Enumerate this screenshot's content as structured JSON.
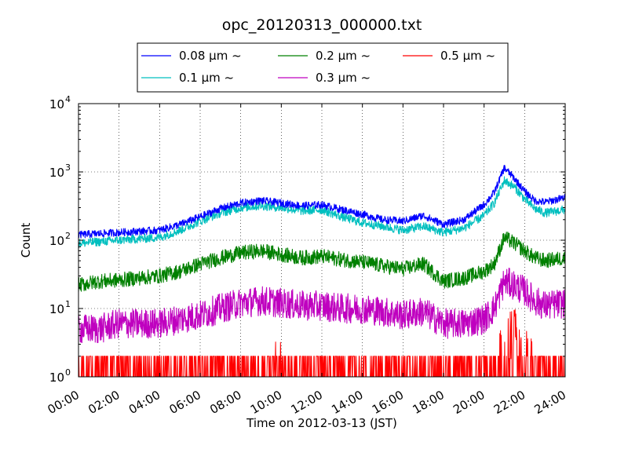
{
  "chart_data": {
    "type": "line",
    "title": "opc_20120313_000000.txt",
    "xlabel": "Time on 2012-03-13 (JST)",
    "ylabel": "Count",
    "y_scale": "log",
    "ylim": [
      1,
      10000
    ],
    "y_ticks": [
      {
        "value": 1,
        "base": "10",
        "exp": "0"
      },
      {
        "value": 10,
        "base": "10",
        "exp": "1"
      },
      {
        "value": 100,
        "base": "10",
        "exp": "2"
      },
      {
        "value": 1000,
        "base": "10",
        "exp": "3"
      },
      {
        "value": 10000,
        "base": "10",
        "exp": "4"
      }
    ],
    "xlim": [
      "00:00",
      "24:00"
    ],
    "x_ticks": [
      "00:00",
      "02:00",
      "04:00",
      "06:00",
      "08:00",
      "10:00",
      "12:00",
      "14:00",
      "16:00",
      "18:00",
      "20:00",
      "22:00",
      "24:00"
    ],
    "grid": true,
    "legend_position": "top-center",
    "series": [
      {
        "name": "0.08 μm ~",
        "color": "#0000ff",
        "x": [
          "00:00",
          "01:00",
          "02:00",
          "03:00",
          "04:00",
          "05:00",
          "06:00",
          "07:00",
          "08:00",
          "09:00",
          "10:00",
          "11:00",
          "12:00",
          "13:00",
          "14:00",
          "15:00",
          "16:00",
          "17:00",
          "18:00",
          "19:00",
          "20:00",
          "20:30",
          "21:00",
          "21:30",
          "22:00",
          "22:30",
          "23:00",
          "24:00"
        ],
        "values": [
          120,
          125,
          130,
          135,
          140,
          170,
          220,
          290,
          350,
          380,
          350,
          320,
          330,
          280,
          240,
          200,
          190,
          230,
          170,
          200,
          330,
          500,
          1150,
          800,
          520,
          380,
          360,
          420
        ]
      },
      {
        "name": "0.1 μm ~",
        "color": "#00bfbf",
        "x": [
          "00:00",
          "01:00",
          "02:00",
          "03:00",
          "04:00",
          "05:00",
          "06:00",
          "07:00",
          "08:00",
          "09:00",
          "10:00",
          "11:00",
          "12:00",
          "13:00",
          "14:00",
          "15:00",
          "16:00",
          "17:00",
          "18:00",
          "19:00",
          "20:00",
          "20:30",
          "21:00",
          "21:30",
          "22:00",
          "22:30",
          "23:00",
          "24:00"
        ],
        "values": [
          90,
          95,
          100,
          105,
          110,
          140,
          190,
          250,
          300,
          320,
          300,
          270,
          280,
          220,
          180,
          160,
          140,
          160,
          130,
          150,
          230,
          350,
          750,
          600,
          400,
          290,
          250,
          280
        ]
      },
      {
        "name": "0.2 μm ~",
        "color": "#008000",
        "x": [
          "00:00",
          "01:00",
          "02:00",
          "03:00",
          "04:00",
          "05:00",
          "06:00",
          "07:00",
          "08:00",
          "09:00",
          "10:00",
          "11:00",
          "12:00",
          "13:00",
          "14:00",
          "15:00",
          "16:00",
          "17:00",
          "18:00",
          "19:00",
          "20:00",
          "20:30",
          "21:00",
          "21:30",
          "22:00",
          "22:30",
          "23:00",
          "24:00"
        ],
        "values": [
          22,
          25,
          26,
          28,
          30,
          35,
          45,
          55,
          65,
          70,
          62,
          55,
          58,
          52,
          48,
          42,
          38,
          45,
          25,
          28,
          35,
          45,
          110,
          90,
          70,
          55,
          50,
          55
        ]
      },
      {
        "name": "0.3 μm ~",
        "color": "#bf00bf",
        "x": [
          "00:00",
          "01:00",
          "02:00",
          "03:00",
          "04:00",
          "05:00",
          "06:00",
          "07:00",
          "08:00",
          "09:00",
          "10:00",
          "11:00",
          "12:00",
          "13:00",
          "14:00",
          "15:00",
          "16:00",
          "17:00",
          "18:00",
          "19:00",
          "20:00",
          "20:30",
          "21:00",
          "21:30",
          "22:00",
          "22:30",
          "23:00",
          "24:00"
        ],
        "values": [
          5,
          5,
          6,
          6,
          6,
          7,
          8,
          10,
          12,
          13,
          12,
          11,
          11,
          10,
          10,
          9,
          8,
          9,
          6,
          6,
          7,
          10,
          25,
          22,
          18,
          13,
          11,
          12
        ]
      },
      {
        "name": "0.5 μm ~",
        "color": "#ff0000",
        "x": [
          "00:00",
          "01:00",
          "02:00",
          "03:00",
          "04:00",
          "05:00",
          "06:00",
          "07:00",
          "08:00",
          "09:00",
          "10:00",
          "11:00",
          "12:00",
          "13:00",
          "14:00",
          "15:00",
          "16:00",
          "17:00",
          "18:00",
          "19:00",
          "20:00",
          "20:30",
          "21:00",
          "21:30",
          "22:00",
          "22:30",
          "23:00",
          "24:00"
        ],
        "values": [
          1.3,
          1.3,
          1.3,
          1.3,
          1.3,
          1.4,
          1.5,
          1.6,
          1.8,
          1.9,
          1.8,
          1.7,
          1.7,
          1.6,
          1.6,
          1.5,
          1.5,
          1.5,
          1.3,
          1.3,
          1.4,
          1.6,
          4,
          6,
          3,
          1.8,
          1.5,
          1.5
        ]
      }
    ]
  }
}
